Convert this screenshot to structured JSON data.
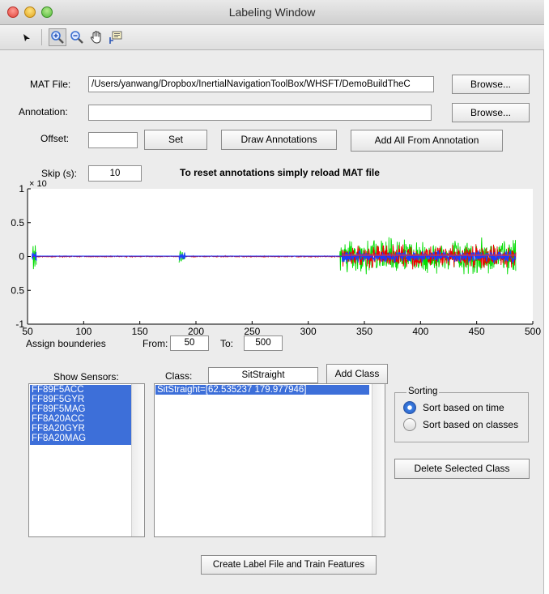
{
  "window": {
    "title": "Labeling Window"
  },
  "toolbar": {
    "tools": [
      {
        "name": "pointer-arrow-icon"
      },
      {
        "name": "zoom-in-icon"
      },
      {
        "name": "zoom-out-icon"
      },
      {
        "name": "pan-hand-icon"
      },
      {
        "name": "data-cursor-icon"
      }
    ]
  },
  "mat_file": {
    "label": "MAT File:",
    "value": "/Users/yanwang/Dropbox/InertialNavigationToolBox/WHSFT/DemoBuildTheC",
    "browse_label": "Browse..."
  },
  "annotation": {
    "label": "Annotation:",
    "value": "",
    "browse_label": "Browse..."
  },
  "offset": {
    "label": "Offset:",
    "value": ""
  },
  "buttons": {
    "set": "Set",
    "draw_annotations": "Draw Annotations",
    "add_all": "Add All From Annotation",
    "add_class": "Add Class",
    "delete_class": "Delete Selected Class",
    "create_label": "Create Label File and Train Features"
  },
  "skip": {
    "label": "Skip (s):",
    "value": "10"
  },
  "hint": "To reset annotations simply reload MAT file",
  "chart_data": {
    "type": "line",
    "title": "",
    "xlabel": "",
    "ylabel": "",
    "exponent_label": "× 10",
    "xlim": [
      50,
      500
    ],
    "ylim": [
      -1,
      1
    ],
    "xticks": [
      "50",
      "100",
      "150",
      "200",
      "250",
      "300",
      "350",
      "400",
      "450",
      "500"
    ],
    "yticks": [
      "1",
      "0.5",
      "0",
      "0.5",
      "-1"
    ],
    "series": [
      {
        "color": "#00dd00",
        "segments": [
          [
            54,
            58,
            0.22
          ],
          [
            185,
            191,
            0.12
          ],
          [
            328,
            485,
            0.3
          ]
        ]
      },
      {
        "color": "#ee0000",
        "segments": [
          [
            54,
            330,
            0.01
          ],
          [
            330,
            485,
            0.2
          ]
        ]
      },
      {
        "color": "#1a3cff",
        "segments": [
          [
            54,
            58,
            0.1
          ],
          [
            185,
            191,
            0.08
          ],
          [
            330,
            485,
            0.1
          ]
        ]
      }
    ]
  },
  "boundaries": {
    "label": "Assign bounderies",
    "from_label": "From:",
    "from_value": "50",
    "to_label": "To:",
    "to_value": "500"
  },
  "sensors": {
    "label": "Show Sensors:",
    "items": [
      "FF89F5ACC",
      "FF89F5GYR",
      "FF89F5MAG",
      "FF8A20ACC",
      "FF8A20GYR",
      "FF8A20MAG"
    ]
  },
  "class": {
    "label": "Class:",
    "value": "SitStraight",
    "list": [
      "SitStraight=[62.535237 179.977946]"
    ]
  },
  "sorting": {
    "legend": "Sorting",
    "options": [
      "Sort based on time",
      "Sort based on classes"
    ],
    "selected": 0
  }
}
